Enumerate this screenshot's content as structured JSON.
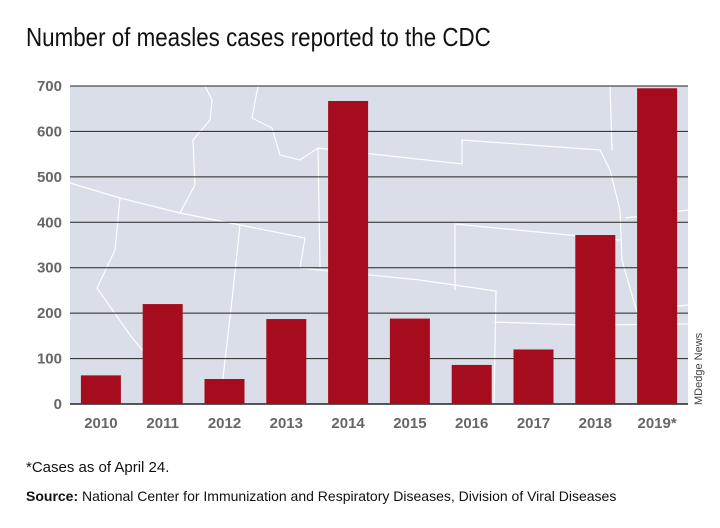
{
  "colors": {
    "bar": "#a50d1f",
    "plot_background": "#d9dee8",
    "grid": "#222222",
    "map_lines": "#ffffff"
  },
  "chart_data": {
    "type": "bar",
    "title": "Number of measles cases reported to the CDC",
    "categories": [
      "2010",
      "2011",
      "2012",
      "2013",
      "2014",
      "2015",
      "2016",
      "2017",
      "2018",
      "2019*"
    ],
    "values": [
      63,
      220,
      55,
      187,
      667,
      188,
      86,
      120,
      372,
      695
    ],
    "ylim": [
      0,
      700
    ],
    "yticks": [
      0,
      100,
      200,
      300,
      400,
      500,
      600,
      700
    ],
    "grid": true,
    "xlabel": "",
    "ylabel": ""
  },
  "credit": "MDedge News",
  "footnote": "*Cases as of April 24.",
  "source": {
    "label": "Source:",
    "text": "National Center for Immunization and Respiratory Diseases, Division of Viral Diseases"
  }
}
